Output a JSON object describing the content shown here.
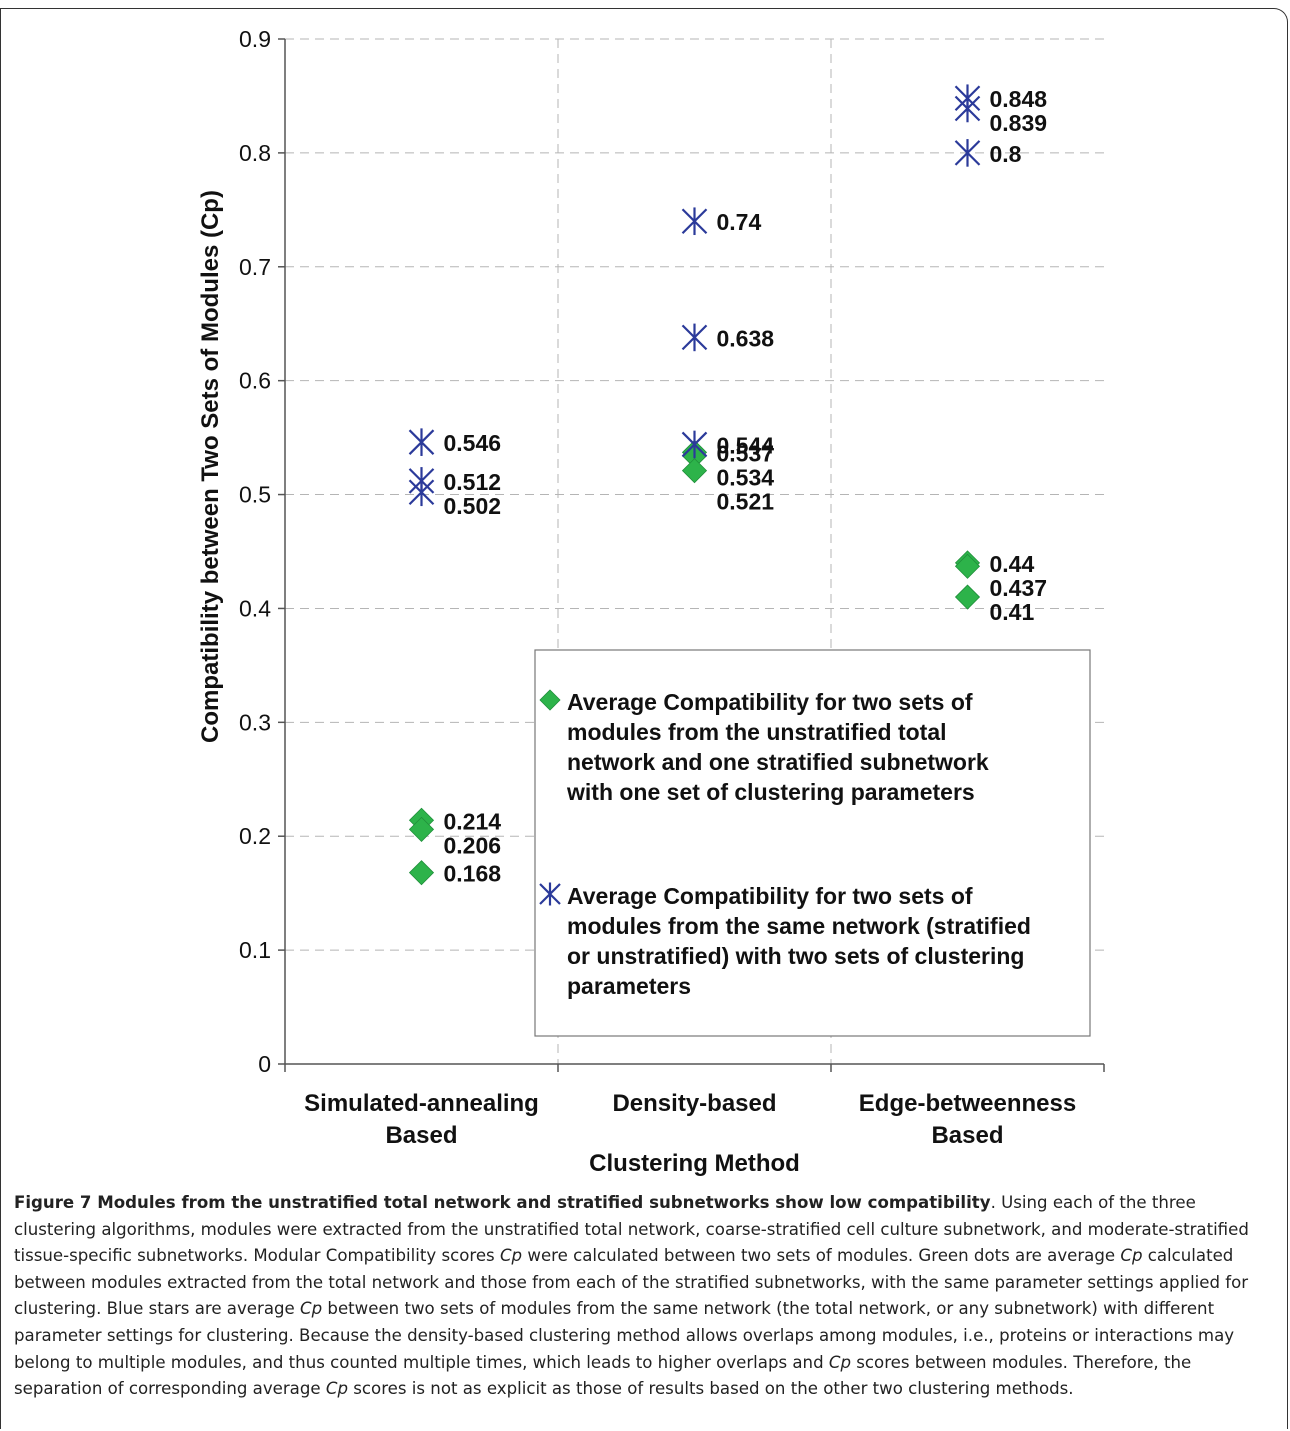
{
  "chart_data": {
    "type": "scatter",
    "xlabel": "Clustering Method",
    "ylabel": "Compatibility between Two Sets of Modules (Cp)",
    "ylim": [
      0,
      0.9
    ],
    "yticks": [
      "0",
      "0.1",
      "0.2",
      "0.3",
      "0.4",
      "0.5",
      "0.6",
      "0.7",
      "0.8",
      "0.9"
    ],
    "grid": true,
    "legend_position": "bottom-right",
    "categories": [
      [
        "Simulated-annealing",
        "Based"
      ],
      [
        "Density-based"
      ],
      [
        "Edge-betweenness",
        "Based"
      ]
    ],
    "series": [
      {
        "name": "Average Compatibility for two sets of modules from the unstratified total network and one stratified subnetwork with one set of clustering parameters",
        "legend_lines": [
          "Average Compatibility for two sets of",
          "modules from the unstratified total",
          "network and one stratified subnetwork",
          "with one set of clustering parameters"
        ],
        "marker": "diamond",
        "color": "#2db34a",
        "points": [
          {
            "cat": 0,
            "y": 0.214,
            "label": "0.214"
          },
          {
            "cat": 0,
            "y": 0.206,
            "label": "0.206"
          },
          {
            "cat": 0,
            "y": 0.168,
            "label": "0.168"
          },
          {
            "cat": 1,
            "y": 0.537,
            "label": "0.537"
          },
          {
            "cat": 1,
            "y": 0.534,
            "label": "0.534"
          },
          {
            "cat": 1,
            "y": 0.521,
            "label": "0.521"
          },
          {
            "cat": 2,
            "y": 0.44,
            "label": "0.44"
          },
          {
            "cat": 2,
            "y": 0.437,
            "label": "0.437"
          },
          {
            "cat": 2,
            "y": 0.41,
            "label": "0.41"
          }
        ]
      },
      {
        "name": "Average Compatibility for two sets of modules from the same network (stratified or unstratified) with two sets of clustering parameters",
        "legend_lines": [
          "Average Compatibility for two sets of",
          "modules from the same network (stratified",
          "or unstratified) with two sets of clustering",
          "parameters"
        ],
        "marker": "star",
        "color": "#2b3a9a",
        "points": [
          {
            "cat": 0,
            "y": 0.546,
            "label": "0.546"
          },
          {
            "cat": 0,
            "y": 0.512,
            "label": "0.512"
          },
          {
            "cat": 0,
            "y": 0.502,
            "label": "0.502"
          },
          {
            "cat": 1,
            "y": 0.74,
            "label": "0.74"
          },
          {
            "cat": 1,
            "y": 0.638,
            "label": "0.638"
          },
          {
            "cat": 1,
            "y": 0.544,
            "label": "0.544"
          },
          {
            "cat": 2,
            "y": 0.848,
            "label": "0.848"
          },
          {
            "cat": 2,
            "y": 0.839,
            "label": "0.839"
          },
          {
            "cat": 2,
            "y": 0.8,
            "label": "0.8"
          }
        ]
      }
    ]
  },
  "caption": {
    "lead": "Figure 7 Modules from the unstratified total network and stratified subnetworks show low compatibility",
    "segments": [
      ". Using each of the three clustering algorithms, modules were extracted from the unstratified total network, coarse-stratified cell culture subnetwork, and moderate-stratified tissue-specific subnetworks. Modular Compatibility scores ",
      {
        "i": "Cp"
      },
      " were calculated between two sets of modules. Green dots are average ",
      {
        "i": "Cp"
      },
      " calculated between modules extracted from the total network and those from each of the stratified subnetworks, with the same parameter settings applied for clustering. Blue stars are average ",
      {
        "i": "Cp"
      },
      " between two sets of modules from the same network (the total network, or any subnetwork) with different parameter settings for clustering. Because the density-based clustering method allows overlaps among modules, i.e., proteins or interactions may belong to multiple modules, and thus counted multiple times, which leads to higher overlaps and ",
      {
        "i": "Cp"
      },
      " scores between modules. Therefore, the separation of corresponding average ",
      {
        "i": "Cp"
      },
      " scores is not as explicit as those of results based on the other two clustering methods."
    ]
  }
}
